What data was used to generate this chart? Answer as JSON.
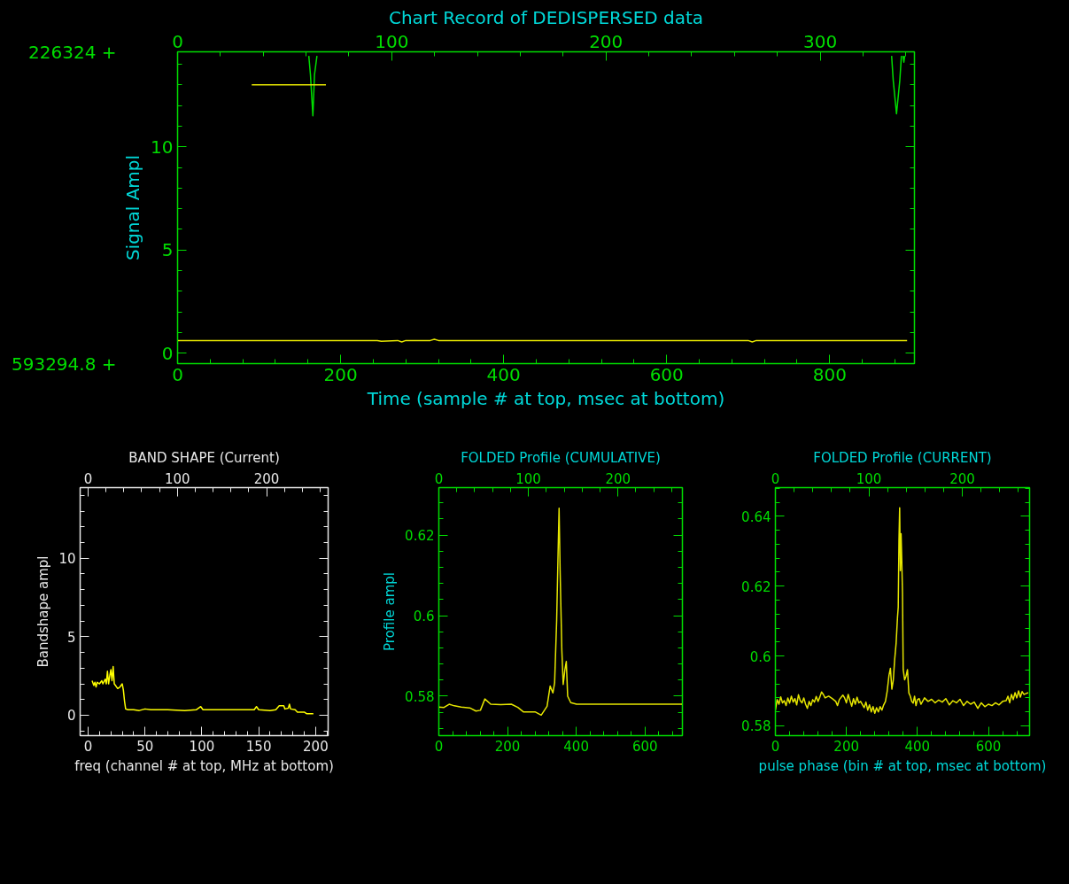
{
  "chart_data": [
    {
      "type": "line",
      "title": "Chart Record of DEDISPERSED data",
      "xlabel": "Time (sample # at top, msec at bottom)",
      "ylabel": "Signal Ampl",
      "xlim": [
        0,
        904
      ],
      "xticks": [
        0,
        200,
        400,
        600,
        800
      ],
      "x2lim": [
        0,
        344
      ],
      "x2ticks": [
        0,
        100,
        200,
        300
      ],
      "ylim": [
        -0.5,
        14.6
      ],
      "yticks": [
        0,
        5,
        10
      ],
      "annotations": [
        "226324 +",
        "593294.8 +"
      ],
      "series": [
        {
          "color": "#e6e600",
          "x": [
            0,
            245,
            250,
            270,
            275,
            280,
            310,
            315,
            320,
            700,
            705,
            710,
            895
          ],
          "values": [
            0.62,
            0.62,
            0.58,
            0.62,
            0.55,
            0.62,
            0.62,
            0.68,
            0.62,
            0.62,
            0.55,
            0.62,
            0.62
          ]
        },
        {
          "color": "#00dd00",
          "x": [
            161,
            163,
            166,
            168,
            171,
            172,
            876,
            878,
            882,
            886,
            888,
            889,
            890,
            891,
            892
          ],
          "values": [
            14.4,
            13.5,
            11.5,
            13.5,
            14.4,
            null,
            14.4,
            13.2,
            11.6,
            13.2,
            14.4,
            null,
            14.4,
            14.1,
            14.4
          ]
        },
        {
          "color": "#e6e600",
          "x": [
            91,
            182
          ],
          "values": [
            13.0,
            13.0
          ]
        }
      ]
    },
    {
      "type": "line",
      "title": "BAND SHAPE (Current)",
      "xlabel": "freq (channel # at top, MHz at bottom)",
      "ylabel": "Bandshape ampl",
      "xlim": [
        -7,
        211
      ],
      "xticks": [
        0,
        50,
        100,
        150,
        200
      ],
      "x2lim": [
        -9,
        269
      ],
      "x2ticks": [
        0,
        100,
        200
      ],
      "ylim": [
        -1.3,
        14.5
      ],
      "yticks": [
        0,
        5,
        10
      ],
      "series": [
        {
          "color": "#ffff00",
          "x": [
            3.5,
            5,
            6,
            7,
            8,
            10,
            12,
            13,
            15,
            16,
            17,
            18,
            19,
            20,
            21,
            22,
            23,
            24,
            26,
            28,
            30,
            31,
            32,
            33,
            35,
            40,
            45,
            50,
            55,
            70,
            85,
            95,
            99,
            101,
            146,
            148,
            150,
            160,
            165,
            168,
            172,
            173,
            176,
            177,
            178,
            182,
            184,
            190,
            192,
            198
          ],
          "values": [
            2.2,
            1.9,
            2.1,
            1.8,
            2.1,
            2.0,
            2.2,
            2.0,
            2.3,
            2.0,
            2.8,
            2.0,
            2.5,
            2.9,
            2.2,
            3.1,
            2.0,
            1.9,
            1.7,
            1.8,
            2.0,
            1.6,
            0.9,
            0.4,
            0.35,
            0.35,
            0.3,
            0.4,
            0.35,
            0.35,
            0.3,
            0.35,
            0.55,
            0.35,
            0.35,
            0.55,
            0.35,
            0.3,
            0.35,
            0.6,
            0.6,
            0.4,
            0.45,
            0.7,
            0.4,
            0.35,
            0.2,
            0.2,
            0.1,
            0.1
          ]
        }
      ]
    },
    {
      "type": "line",
      "title": "FOLDED Profile (CUMULATIVE)",
      "ylabel": "Profile ampl",
      "xlim": [
        0,
        709
      ],
      "xticks": [
        0,
        200,
        400,
        600
      ],
      "x2lim": [
        0,
        272
      ],
      "x2ticks": [
        0,
        100,
        200
      ],
      "ylim": [
        0.5702,
        0.6318
      ],
      "yticks": [
        0.58,
        0.6,
        0.62
      ],
      "series": [
        {
          "color": "#e6e600",
          "x": [
            0,
            15,
            30,
            45,
            65,
            90,
            108,
            121,
            134,
            151,
            180,
            211,
            230,
            246,
            280,
            298,
            315,
            324,
            332,
            337,
            343,
            347,
            350,
            353,
            358,
            362,
            367,
            371,
            375,
            384,
            401,
            450,
            550,
            650,
            709
          ],
          "values": [
            0.5773,
            0.5772,
            0.578,
            0.5776,
            0.5773,
            0.5771,
            0.5763,
            0.5765,
            0.5793,
            0.578,
            0.5779,
            0.578,
            0.5772,
            0.5761,
            0.5761,
            0.5753,
            0.5775,
            0.5825,
            0.5808,
            0.5833,
            0.5989,
            0.6153,
            0.6267,
            0.6112,
            0.5915,
            0.5829,
            0.5866,
            0.5886,
            0.58,
            0.5784,
            0.578,
            0.578,
            0.578,
            0.578,
            0.578
          ]
        }
      ]
    },
    {
      "type": "line",
      "title": "FOLDED Profile (CURRENT)",
      "xlabel": "pulse phase (bin # at top, msec at bottom)",
      "xlim": [
        0,
        716
      ],
      "xticks": [
        0,
        200,
        400,
        600
      ],
      "x2lim": [
        0,
        272
      ],
      "x2ticks": [
        0,
        100,
        200
      ],
      "ylim": [
        0.5772,
        0.6482
      ],
      "yticks": [
        0.58,
        0.6,
        0.62,
        0.64
      ],
      "series": [
        {
          "color": "#e6e600",
          "x": [
            0,
            5,
            10,
            15,
            20,
            25,
            30,
            35,
            40,
            45,
            50,
            55,
            60,
            65,
            70,
            75,
            80,
            85,
            90,
            95,
            100,
            105,
            110,
            115,
            120,
            125,
            130,
            135,
            140,
            150,
            160,
            170,
            175,
            180,
            190,
            195,
            200,
            205,
            210,
            215,
            220,
            225,
            230,
            235,
            240,
            250,
            255,
            260,
            265,
            270,
            275,
            280,
            285,
            290,
            295,
            300,
            305,
            310,
            315,
            320,
            324,
            328,
            332,
            336,
            340,
            344,
            346,
            348,
            350,
            352,
            354,
            356,
            358,
            360,
            364,
            368,
            372,
            376,
            380,
            384,
            388,
            392,
            396,
            400,
            405,
            410,
            420,
            430,
            440,
            450,
            460,
            470,
            480,
            490,
            500,
            510,
            520,
            530,
            540,
            550,
            560,
            570,
            580,
            590,
            600,
            610,
            620,
            630,
            640,
            650,
            655,
            660,
            665,
            670,
            675,
            680,
            685,
            690,
            695,
            700,
            705,
            712
          ],
          "values": [
            0.5845,
            0.5875,
            0.5862,
            0.5883,
            0.5866,
            0.5872,
            0.5858,
            0.588,
            0.5865,
            0.5885,
            0.5868,
            0.5878,
            0.586,
            0.5889,
            0.5872,
            0.5866,
            0.588,
            0.5862,
            0.585,
            0.587,
            0.5858,
            0.5875,
            0.5868,
            0.5884,
            0.587,
            0.5882,
            0.5897,
            0.589,
            0.588,
            0.5885,
            0.5878,
            0.587,
            0.5858,
            0.5875,
            0.5888,
            0.588,
            0.5866,
            0.589,
            0.5872,
            0.5856,
            0.5878,
            0.5862,
            0.5882,
            0.5866,
            0.587,
            0.5852,
            0.5868,
            0.5845,
            0.586,
            0.584,
            0.5855,
            0.5836,
            0.5852,
            0.584,
            0.5855,
            0.5845,
            0.586,
            0.587,
            0.59,
            0.5945,
            0.5965,
            0.5905,
            0.593,
            0.599,
            0.6036,
            0.6112,
            0.614,
            0.6329,
            0.6424,
            0.6244,
            0.635,
            0.6273,
            0.618,
            0.5961,
            0.5932,
            0.5942,
            0.5961,
            0.5894,
            0.5885,
            0.587,
            0.5865,
            0.5885,
            0.5858,
            0.5875,
            0.5878,
            0.5862,
            0.588,
            0.587,
            0.5876,
            0.5866,
            0.5874,
            0.5868,
            0.5878,
            0.586,
            0.5872,
            0.5866,
            0.5876,
            0.5858,
            0.587,
            0.5862,
            0.5868,
            0.585,
            0.5866,
            0.5855,
            0.5862,
            0.5858,
            0.5866,
            0.586,
            0.587,
            0.5872,
            0.5885,
            0.5866,
            0.589,
            0.5875,
            0.5895,
            0.588,
            0.59,
            0.5882,
            0.5898,
            0.589,
            0.5892,
            0.5895
          ]
        }
      ]
    }
  ]
}
